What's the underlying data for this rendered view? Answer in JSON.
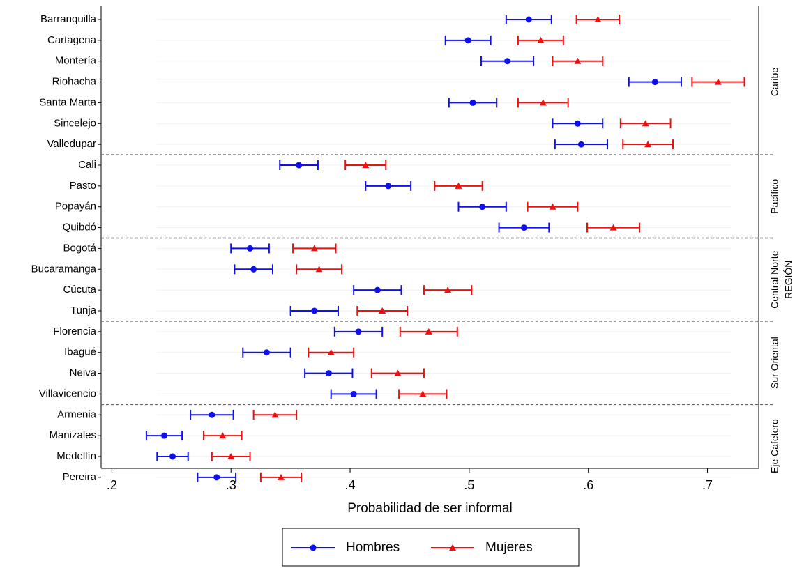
{
  "chart_data": {
    "type": "errorbar",
    "x_label": "Probabilidad de ser informal",
    "group_axis_label": "REGIÓN",
    "categories": [
      "Barranquilla",
      "Cartagena",
      "Montería",
      "Riohacha",
      "Santa Marta",
      "Sincelejo",
      "Valledupar",
      "Cali",
      "Pasto",
      "Popayán",
      "Quibdó",
      "Bogotá",
      "Bucaramanga",
      "Cúcuta",
      "Tunja",
      "Florencia",
      "Ibagué",
      "Neiva",
      "Villavicencio",
      "Armenia",
      "Manizales",
      "Medellín",
      "Pereira"
    ],
    "category_region": [
      "Caribe",
      "Caribe",
      "Caribe",
      "Caribe",
      "Caribe",
      "Caribe",
      "Caribe",
      "Pacífico",
      "Pacífico",
      "Pacífico",
      "Pacífico",
      "Central Norte",
      "Central Norte",
      "Central Norte",
      "Central Norte",
      "Sur Oriental",
      "Sur Oriental",
      "Sur Oriental",
      "Sur Oriental",
      "Eje Cafetero",
      "Eje Cafetero",
      "Eje Cafetero",
      "Eje Cafetero"
    ],
    "series": [
      {
        "name": "Hombres",
        "color": "#1010ee",
        "marker": "circle",
        "values": [
          0.55,
          0.499,
          0.532,
          0.656,
          0.503,
          0.591,
          0.594,
          0.357,
          0.432,
          0.511,
          0.546,
          0.316,
          0.319,
          0.423,
          0.37,
          0.407,
          0.33,
          0.382,
          0.403,
          0.284,
          0.244,
          0.251,
          0.288
        ],
        "errors": [
          0.019,
          0.019,
          0.022,
          0.022,
          0.02,
          0.021,
          0.022,
          0.016,
          0.019,
          0.02,
          0.021,
          0.016,
          0.016,
          0.02,
          0.02,
          0.02,
          0.02,
          0.02,
          0.019,
          0.018,
          0.015,
          0.013,
          0.016
        ]
      },
      {
        "name": "Mujeres",
        "color": "#ee1010",
        "marker": "triangle",
        "values": [
          0.608,
          0.56,
          0.591,
          0.709,
          0.562,
          0.648,
          0.65,
          0.413,
          0.491,
          0.57,
          0.621,
          0.37,
          0.374,
          0.482,
          0.427,
          0.466,
          0.384,
          0.44,
          0.461,
          0.337,
          0.293,
          0.3,
          0.342
        ],
        "errors": [
          0.018,
          0.019,
          0.021,
          0.022,
          0.021,
          0.021,
          0.021,
          0.017,
          0.02,
          0.021,
          0.022,
          0.018,
          0.019,
          0.02,
          0.021,
          0.024,
          0.019,
          0.022,
          0.02,
          0.018,
          0.016,
          0.016,
          0.017
        ]
      }
    ],
    "xlim": [
      0.191,
      0.743
    ],
    "xticks": [
      {
        "value": 0.2,
        "label": ".2"
      },
      {
        "value": 0.3,
        "label": ".3"
      },
      {
        "value": 0.4,
        "label": ".4"
      },
      {
        "value": 0.5,
        "label": ".5"
      },
      {
        "value": 0.6,
        "label": ".6"
      },
      {
        "value": 0.7,
        "label": ".7"
      }
    ],
    "grid": true
  }
}
